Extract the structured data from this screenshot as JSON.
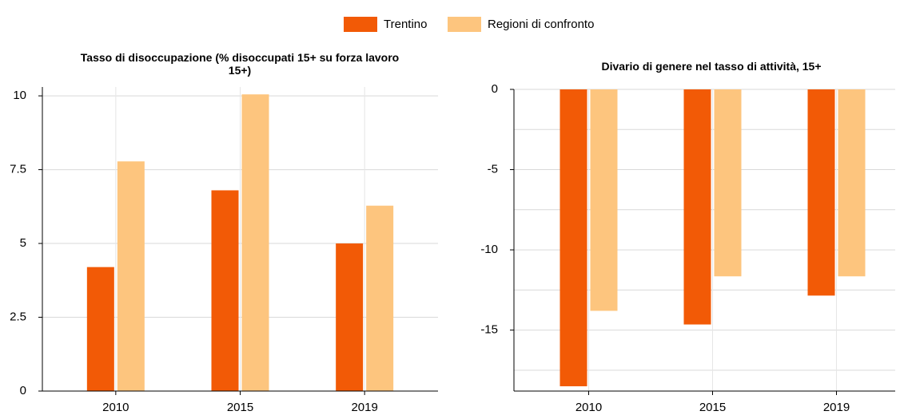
{
  "chart_data": [
    {
      "type": "bar",
      "title": "Tasso di disoccupazione (% disoccupati 15+ su forza lavoro 15+)",
      "categories": [
        "2010",
        "2015",
        "2019"
      ],
      "series": [
        {
          "name": "Trentino",
          "color": "#f25a06",
          "values": [
            4.2,
            6.8,
            5.0
          ]
        },
        {
          "name": "Regioni di confronto",
          "color": "#fdc57e",
          "values": [
            7.78,
            10.05,
            6.28
          ]
        }
      ],
      "ylim": [
        0,
        10.3
      ],
      "yticks": [
        0,
        2.5,
        5,
        7.5,
        10
      ],
      "grid": true
    },
    {
      "type": "bar",
      "title": "Divario di genere nel tasso di attività, 15+",
      "categories": [
        "2010",
        "2015",
        "2019"
      ],
      "series": [
        {
          "color": "#f25a06",
          "values": [
            -18.5,
            -14.65,
            -12.85
          ]
        },
        {
          "color": "#fdc57e",
          "values": [
            -13.8,
            -11.65,
            -11.65
          ]
        }
      ],
      "ylim": [
        -18.8,
        0
      ],
      "yticks": [
        0,
        -5,
        -10,
        -15
      ],
      "minor_yticks": [
        -2.5,
        -7.5,
        -12.5,
        -17.5
      ],
      "grid": true
    }
  ]
}
